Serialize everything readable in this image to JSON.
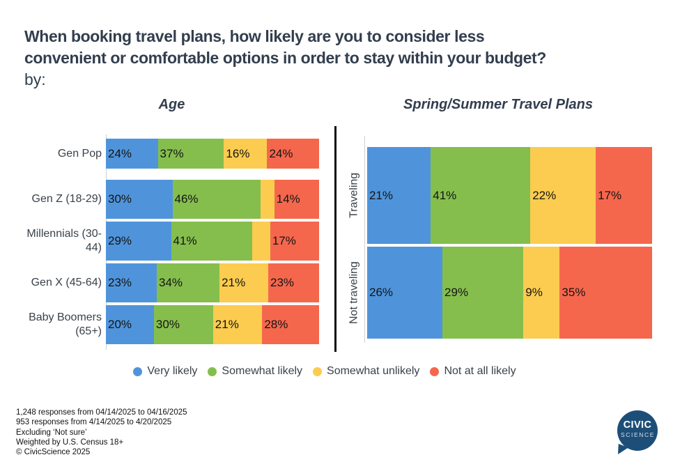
{
  "title": {
    "line1": "When booking travel plans, how likely are you to consider less",
    "line2": "convenient or comfortable options in order to stay within your budget?",
    "line3": "by:"
  },
  "chart_data": [
    {
      "type": "bar",
      "variant": "horizontal-stacked-100pct",
      "title": "Age",
      "xlim": [
        0,
        100
      ],
      "categories": [
        "Gen Pop",
        "Gen Z (18-29)",
        "Millennials (30-44)",
        "Gen X (45-64)",
        "Baby Boomers (65+)"
      ],
      "series": [
        {
          "name": "Very likely",
          "color": "#4F94DB",
          "values": [
            24,
            30,
            29,
            23,
            20
          ]
        },
        {
          "name": "Somewhat likely",
          "color": "#85BE4D",
          "values": [
            37,
            46,
            41,
            34,
            30
          ]
        },
        {
          "name": "Somewhat unlikely",
          "color": "#FBCC4F",
          "values": [
            16,
            10,
            13,
            21,
            21
          ]
        },
        {
          "name": "Not at all likely",
          "color": "#F5674D",
          "values": [
            24,
            14,
            17,
            23,
            28
          ]
        }
      ],
      "segment_labels": [
        [
          "24%",
          "37%",
          "16%",
          "24%"
        ],
        [
          "30%",
          "46%",
          "",
          "14%"
        ],
        [
          "29%",
          "41%",
          "",
          "17%"
        ],
        [
          "23%",
          "34%",
          "21%",
          "23%"
        ],
        [
          "20%",
          "30%",
          "21%",
          "28%"
        ]
      ]
    },
    {
      "type": "bar",
      "variant": "horizontal-stacked-100pct",
      "title": "Spring/Summer Travel Plans",
      "xlim": [
        0,
        100
      ],
      "categories": [
        "Traveling",
        "Not traveling"
      ],
      "series": [
        {
          "name": "Very likely",
          "color": "#4F94DB",
          "values": [
            21,
            26
          ]
        },
        {
          "name": "Somewhat likely",
          "color": "#85BE4D",
          "values": [
            41,
            29
          ]
        },
        {
          "name": "Somewhat unlikely",
          "color": "#FBCC4F",
          "values": [
            22,
            9
          ]
        },
        {
          "name": "Not at all likely",
          "color": "#F5674D",
          "values": [
            17,
            35
          ]
        }
      ],
      "segment_labels": [
        [
          "21%",
          "41%",
          "22%",
          "17%"
        ],
        [
          "26%",
          "29%",
          "9%",
          "35%"
        ]
      ]
    }
  ],
  "legend": {
    "items": [
      {
        "label": "Very likely",
        "color": "#4F94DB"
      },
      {
        "label": "Somewhat likely",
        "color": "#85BE4D"
      },
      {
        "label": "Somewhat unlikely",
        "color": "#FBCC4F"
      },
      {
        "label": "Not at all likely",
        "color": "#F5674D"
      }
    ]
  },
  "footer": {
    "lines": [
      "1,248 responses from 04/14/2025 to 04/16/2025",
      "953 responses from 4/14/2025 to 4/20/2025",
      "Excluding ‘Not sure’",
      "Weighted by U.S. Census 18+",
      "© CivicScience 2025"
    ]
  },
  "logo": {
    "line1": "CIVIC",
    "line2": "SCIENCE",
    "color": "#1D4E78"
  }
}
